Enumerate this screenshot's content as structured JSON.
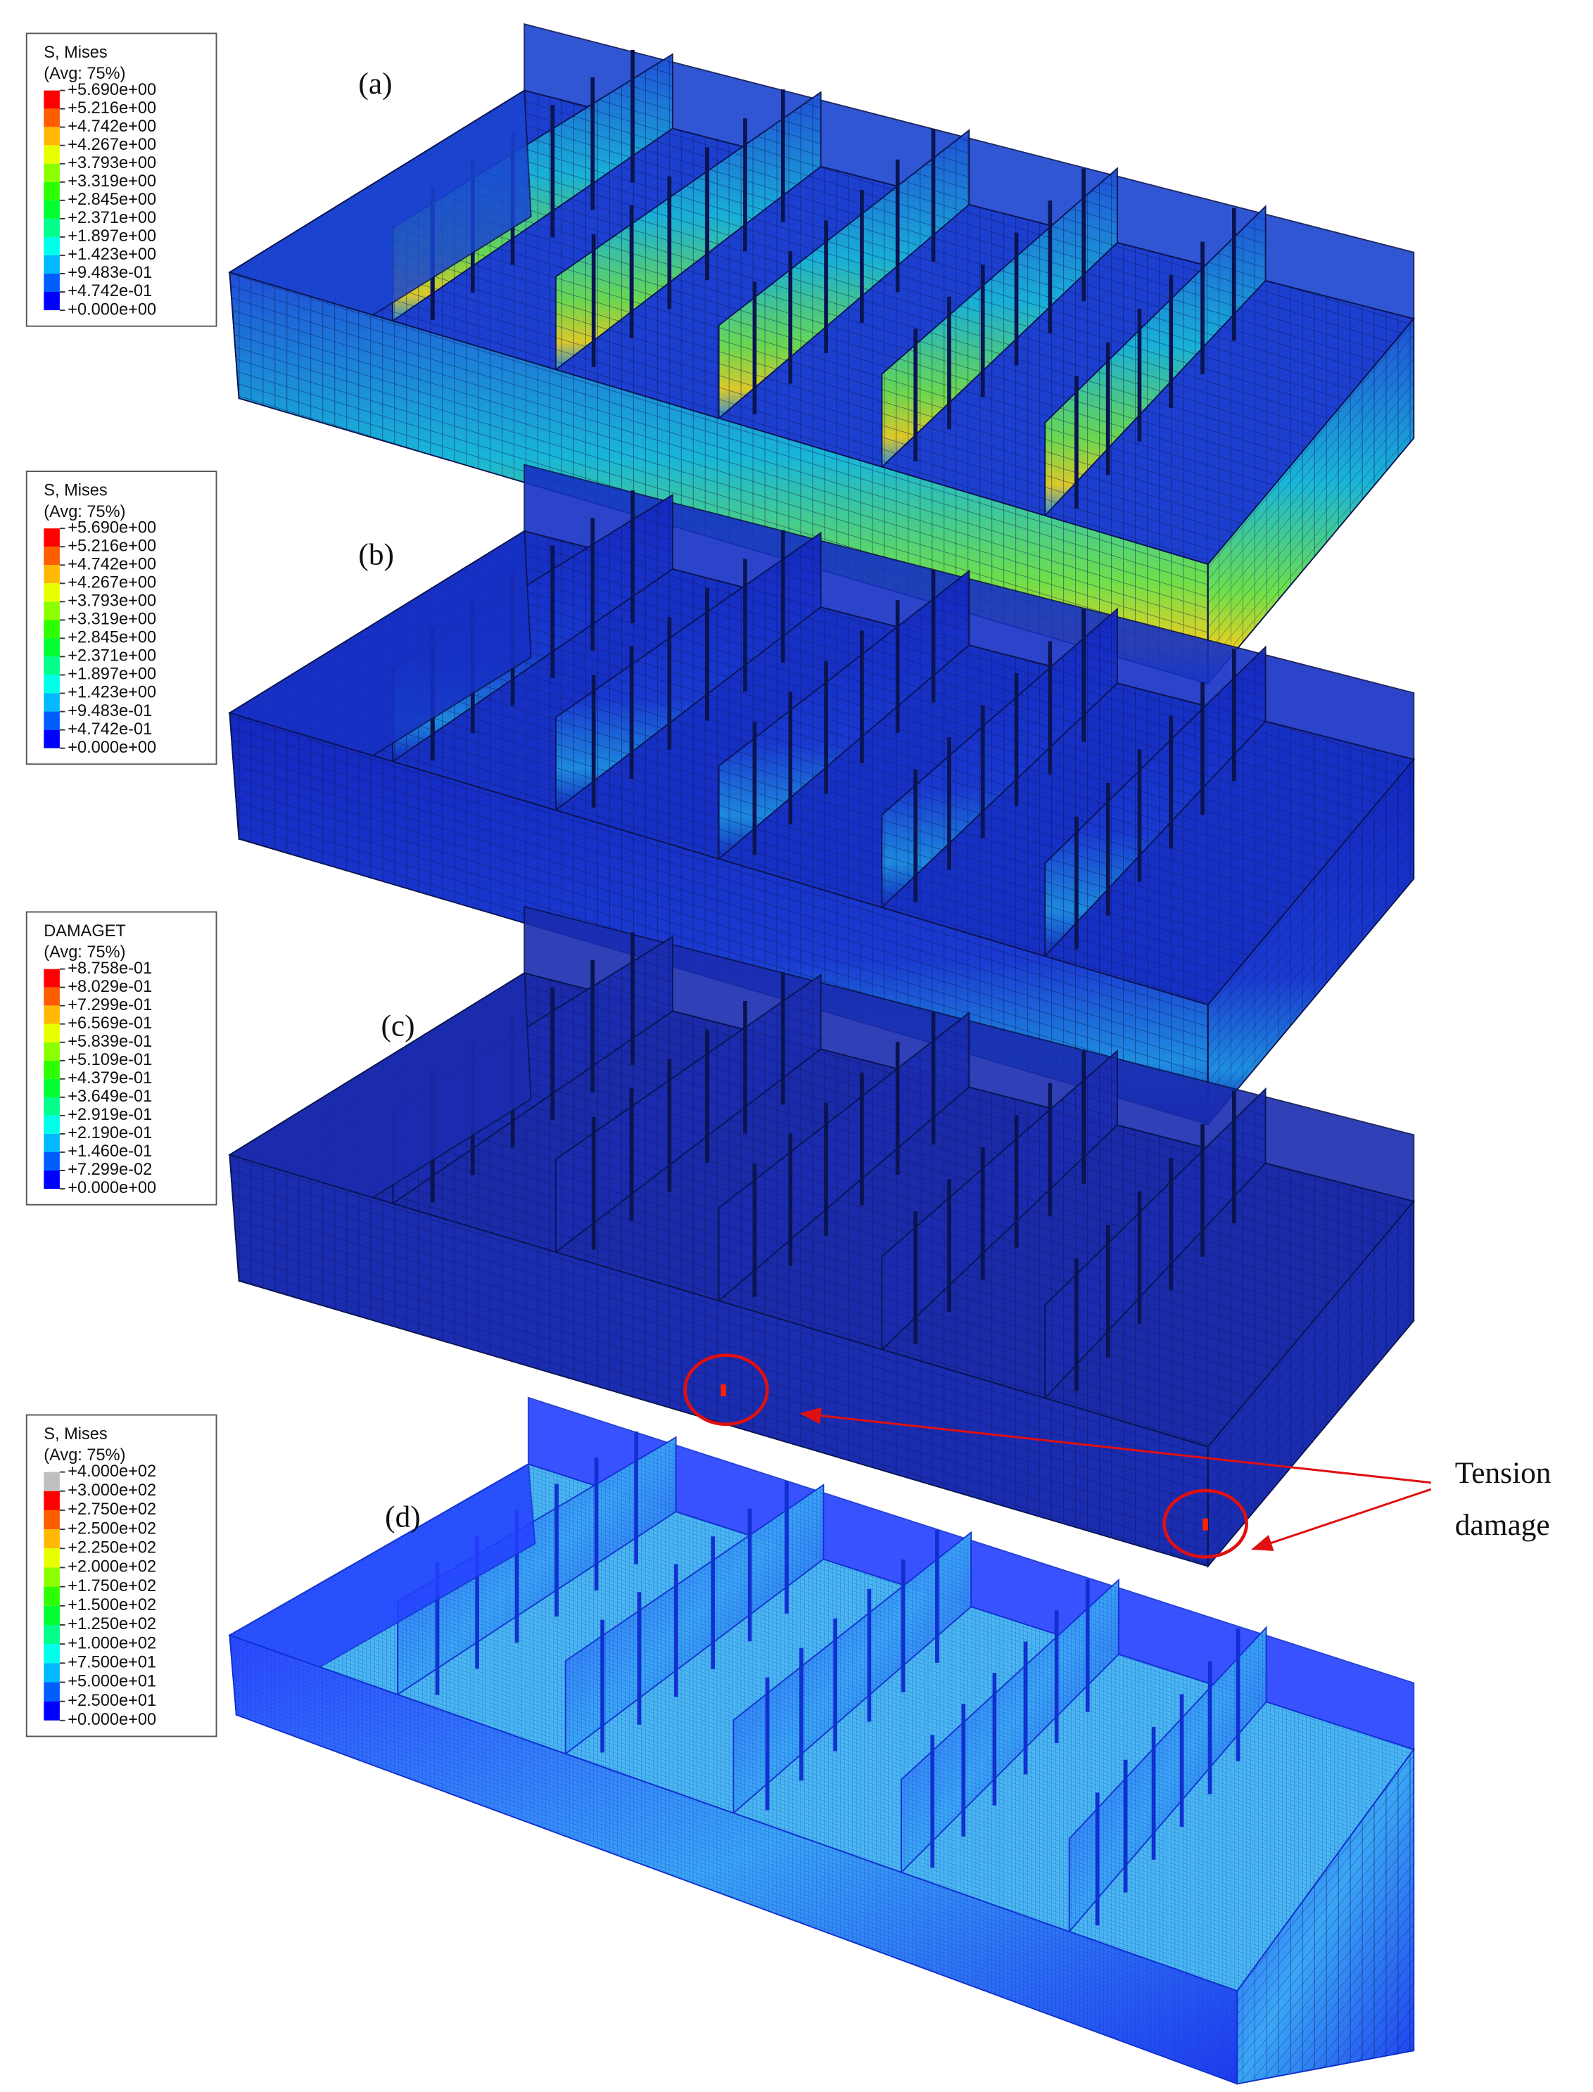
{
  "panels": [
    {
      "label": "(a)",
      "legend": {
        "title": "S, Mises",
        "subtitle": "(Avg: 75%)",
        "labels": [
          "+5.690e+00",
          "+5.216e+00",
          "+4.742e+00",
          "+4.267e+00",
          "+3.793e+00",
          "+3.319e+00",
          "+2.845e+00",
          "+2.371e+00",
          "+1.897e+00",
          "+1.423e+00",
          "+9.483e-01",
          "+4.742e-01",
          "+0.000e+00"
        ],
        "colors": [
          "#ff0000",
          "#ff5d00",
          "#ffb900",
          "#e9ff00",
          "#8bff00",
          "#2eff00",
          "#00ff2e",
          "#00ff8b",
          "#00ffe8",
          "#00b9ff",
          "#005dff",
          "#0000ff"
        ]
      }
    },
    {
      "label": "(b)",
      "legend": {
        "title": "S, Mises",
        "subtitle": "(Avg: 75%)",
        "labels": [
          "+5.690e+00",
          "+5.216e+00",
          "+4.742e+00",
          "+4.267e+00",
          "+3.793e+00",
          "+3.319e+00",
          "+2.845e+00",
          "+2.371e+00",
          "+1.897e+00",
          "+1.423e+00",
          "+9.483e-01",
          "+4.742e-01",
          "+0.000e+00"
        ],
        "colors": [
          "#ff0000",
          "#ff5d00",
          "#ffb900",
          "#e9ff00",
          "#8bff00",
          "#2eff00",
          "#00ff2e",
          "#00ff8b",
          "#00ffe8",
          "#00b9ff",
          "#005dff",
          "#0000ff"
        ]
      }
    },
    {
      "label": "(c)",
      "legend": {
        "title": "DAMAGET",
        "subtitle": "(Avg: 75%)",
        "labels": [
          "+8.758e-01",
          "+8.029e-01",
          "+7.299e-01",
          "+6.569e-01",
          "+5.839e-01",
          "+5.109e-01",
          "+4.379e-01",
          "+3.649e-01",
          "+2.919e-01",
          "+2.190e-01",
          "+1.460e-01",
          "+7.299e-02",
          "+0.000e+00"
        ],
        "colors": [
          "#ff0000",
          "#ff5d00",
          "#ffb900",
          "#e9ff00",
          "#8bff00",
          "#2eff00",
          "#00ff2e",
          "#00ff8b",
          "#00ffe8",
          "#00b9ff",
          "#005dff",
          "#0000ff"
        ]
      }
    },
    {
      "label": "(d)",
      "legend": {
        "title": "S, Mises",
        "subtitle": "(Avg: 75%)",
        "labels": [
          "+4.000e+02",
          "+3.000e+02",
          "+2.750e+02",
          "+2.500e+02",
          "+2.250e+02",
          "+2.000e+02",
          "+1.750e+02",
          "+1.500e+02",
          "+1.250e+02",
          "+1.000e+02",
          "+7.500e+01",
          "+5.000e+01",
          "+2.500e+01",
          "+0.000e+00"
        ],
        "colors": [
          "#c0c0c0",
          "#ff0000",
          "#ff5d00",
          "#ffb900",
          "#e9ff00",
          "#8bff00",
          "#2eff00",
          "#00ff2e",
          "#00ff8b",
          "#00ffe8",
          "#00b9ff",
          "#005dff",
          "#0000ff"
        ]
      }
    }
  ],
  "annotation": {
    "lines": [
      "Tension",
      "damage"
    ]
  }
}
